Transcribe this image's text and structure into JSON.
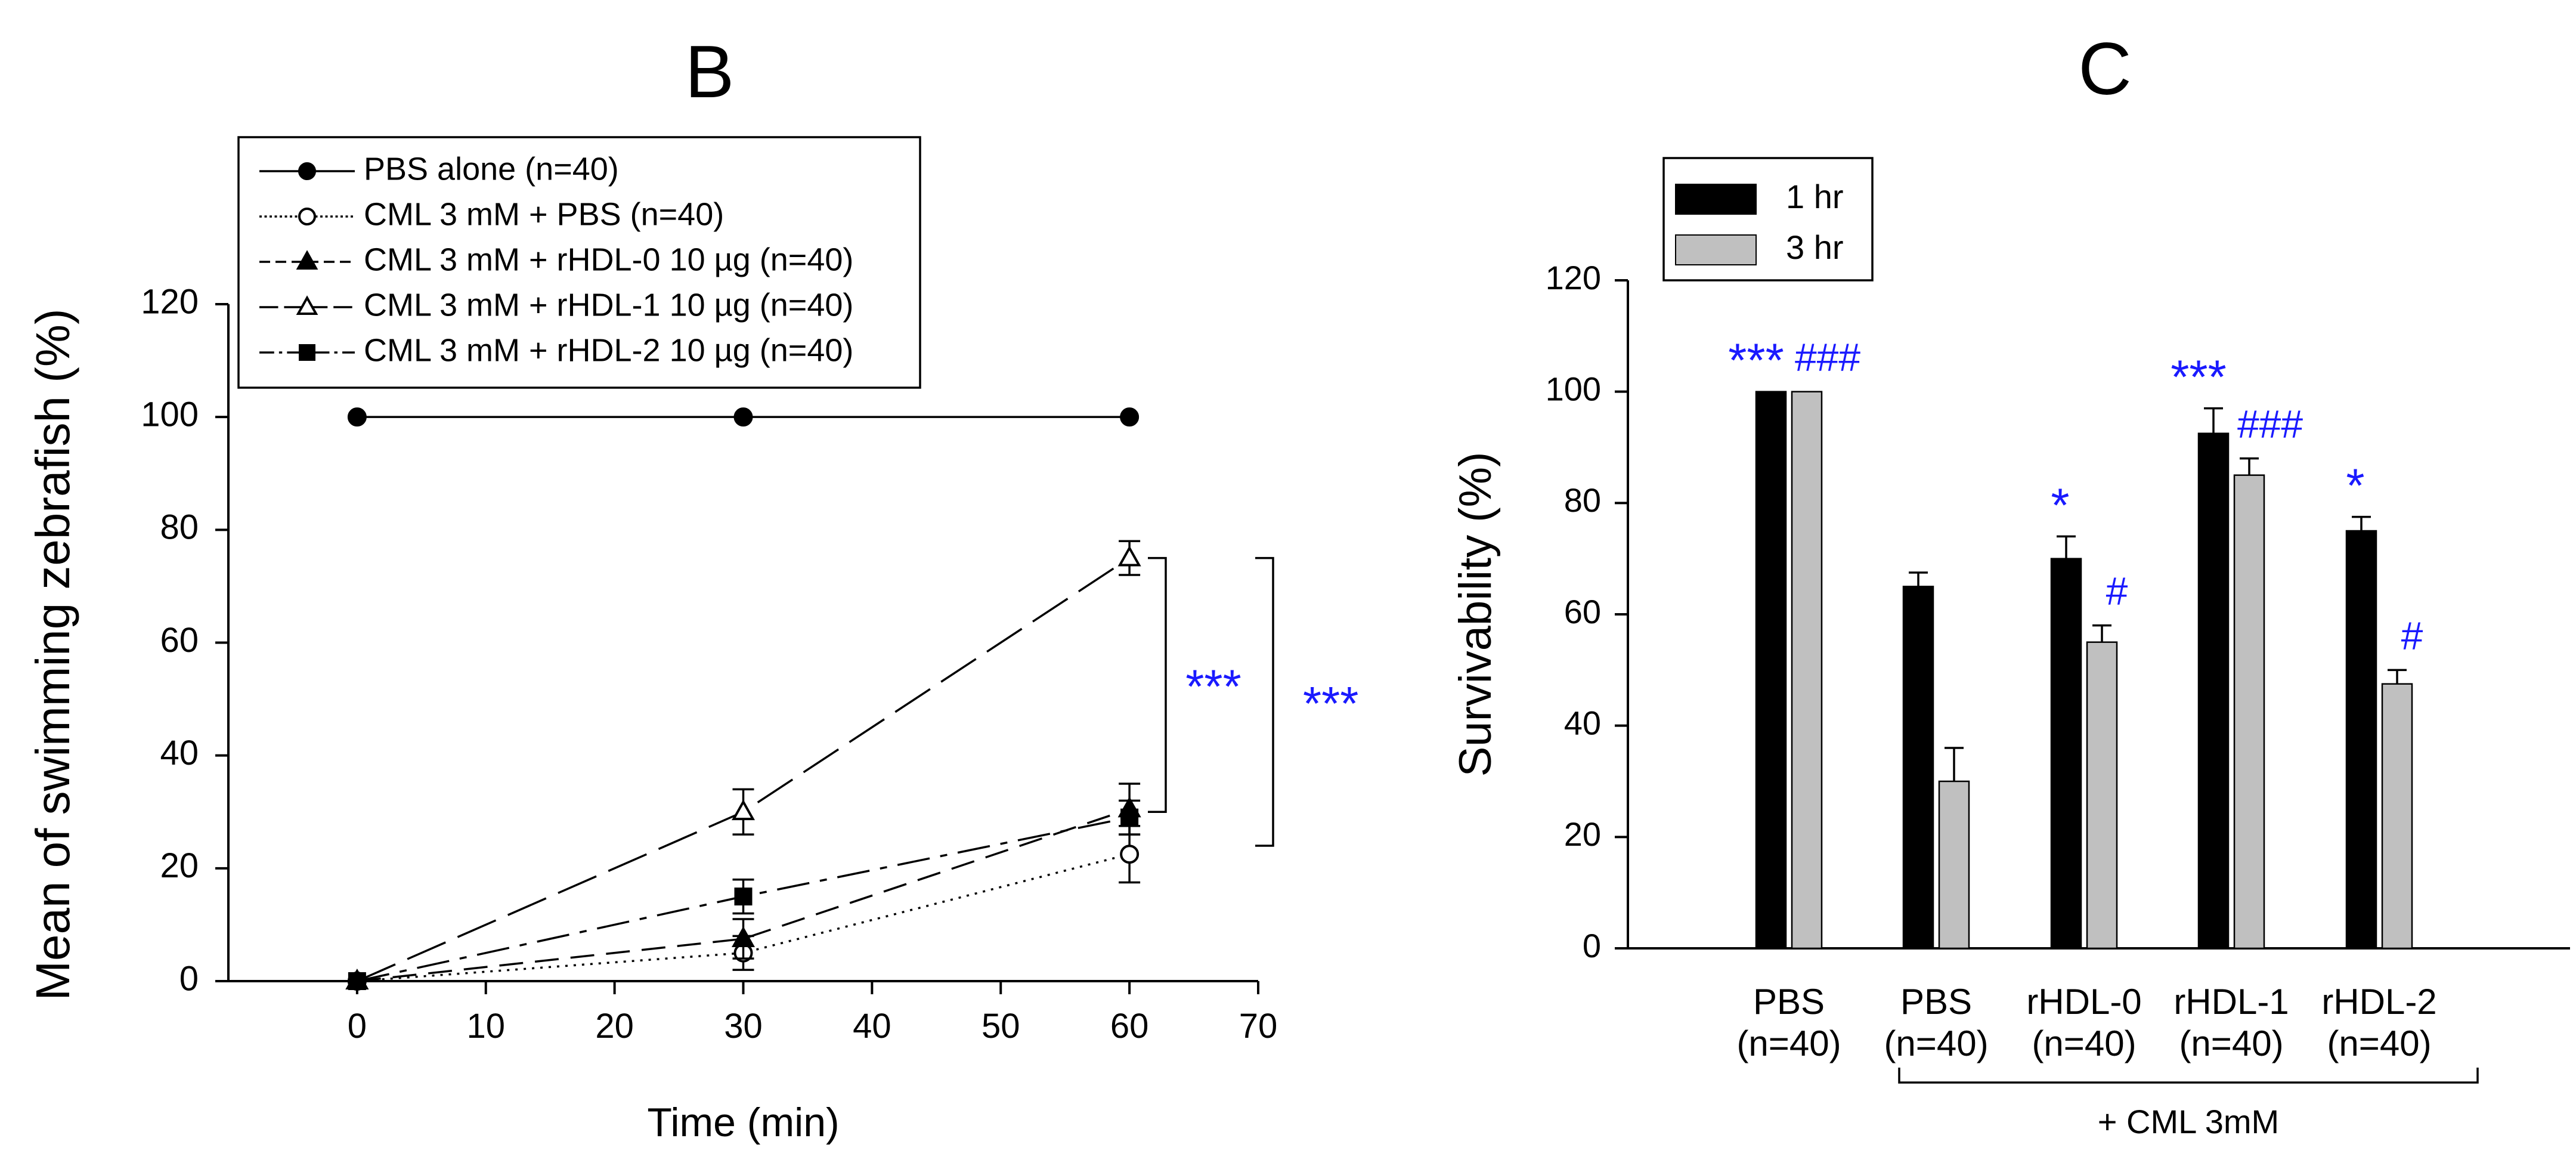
{
  "chart_data": [
    {
      "panel": "B",
      "type": "line",
      "title": "B",
      "xlabel": "Time (min)",
      "ylabel": "Mean of swimming zebrafish (%)",
      "xlim": [
        -10,
        70
      ],
      "ylim": [
        0,
        120
      ],
      "xticks": [
        0,
        10,
        20,
        30,
        40,
        50,
        60,
        70
      ],
      "yticks": [
        0,
        20,
        40,
        60,
        80,
        100,
        120
      ],
      "legend": {
        "placement": "top-left",
        "entries": [
          "PBS alone (n=40)",
          "CML 3 mM + PBS (n=40)",
          "CML 3 mM + rHDL-0 10 µg (n=40)",
          "CML 3 mM + rHDL-1 10 µg (n=40)",
          "CML 3 mM + rHDL-2 10 µg (n=40)"
        ]
      },
      "x": [
        0,
        30,
        60
      ],
      "series": [
        {
          "name": "PBS alone (n=40)",
          "marker": "filled-circle",
          "line": "solid",
          "values": [
            100,
            100,
            100
          ],
          "errors": [
            0,
            0,
            0
          ]
        },
        {
          "name": "CML 3 mM + PBS (n=40)",
          "marker": "open-circle",
          "line": "dotted",
          "values": [
            0,
            5,
            22.5
          ],
          "errors": [
            0,
            3,
            5
          ]
        },
        {
          "name": "CML 3 mM + rHDL-0 10 µg (n=40)",
          "marker": "filled-triangle",
          "line": "dashed",
          "values": [
            0,
            7.5,
            30.5
          ],
          "errors": [
            0,
            3.5,
            4.5
          ]
        },
        {
          "name": "CML 3 mM + rHDL-1 10 µg (n=40)",
          "marker": "open-triangle",
          "line": "long-dash",
          "values": [
            0,
            30,
            75
          ],
          "errors": [
            0,
            4,
            3
          ]
        },
        {
          "name": "CML 3 mM + rHDL-2 10 µg (n=40)",
          "marker": "filled-square",
          "line": "dash-dot",
          "values": [
            0,
            15,
            29
          ],
          "errors": [
            0,
            3,
            3
          ]
        }
      ],
      "annotations": [
        {
          "text": "***",
          "color": "#1a1aff",
          "bracket_from": 30,
          "bracket_to": 75
        },
        {
          "text": "***",
          "color": "#1a1aff",
          "bracket_from": 24,
          "bracket_to": 75
        }
      ]
    },
    {
      "panel": "C",
      "type": "bar",
      "title": "C",
      "xlabel": "",
      "ylabel": "Survivability (%)",
      "ylim": [
        0,
        120
      ],
      "yticks": [
        0,
        20,
        40,
        60,
        80,
        100,
        120
      ],
      "legend": {
        "placement": "top-left",
        "entries": [
          "1 hr",
          "3 hr"
        ]
      },
      "categories": [
        "PBS",
        "PBS",
        "rHDL-0",
        "rHDL-1",
        "rHDL-2"
      ],
      "category_sublabels": [
        "(n=40)",
        "(n=40)",
        "(n=40)",
        "(n=40)",
        "(n=40)"
      ],
      "group_label": "+ CML 3mM",
      "series": [
        {
          "name": "1 hr",
          "color": "#000000",
          "values": [
            100,
            65,
            70,
            92.5,
            75
          ],
          "errors": [
            0,
            2.5,
            4,
            4.5,
            2.5
          ],
          "significance": [
            "***",
            "",
            "*",
            "***",
            "*"
          ]
        },
        {
          "name": "3 hr",
          "color": "#c0c0c0",
          "values": [
            100,
            30,
            55,
            85,
            47.5
          ],
          "errors": [
            0,
            6,
            3,
            3,
            2.5
          ],
          "significance": [
            "###",
            "",
            "#",
            "###",
            "#"
          ]
        }
      ],
      "annotation_color": "#1a1aff"
    }
  ]
}
